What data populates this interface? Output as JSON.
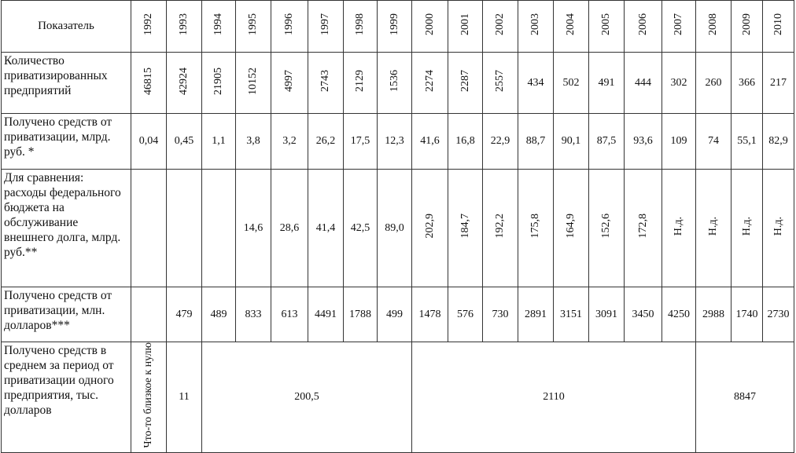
{
  "table": {
    "header": [
      "Показатель",
      "1992",
      "1993",
      "1994",
      "1995",
      "1996",
      "1997",
      "1998",
      "1999",
      "2000",
      "2001",
      "2002",
      "2003",
      "2004",
      "2005",
      "2006",
      "2007",
      "2008",
      "2009",
      "2010"
    ],
    "rows": [
      {
        "label": "Количество приватизированных предприятий",
        "cells": [
          "46815",
          "42924",
          "21905",
          "10152",
          "4997",
          "2743",
          "2129",
          "1536",
          "2274",
          "2287",
          "2557",
          "434",
          "502",
          "491",
          "444",
          "302",
          "260",
          "366",
          "217"
        ]
      },
      {
        "label": "Получено средств от приватизации, млрд. руб. *",
        "cells": [
          "0,04",
          "0,45",
          "1,1",
          "3,8",
          "3,2",
          "26,2",
          "17,5",
          "12,3",
          "41,6",
          "16,8",
          "22,9",
          "88,7",
          "90,1",
          "87,5",
          "93,6",
          "109",
          "74",
          "55,1",
          "82,9"
        ]
      },
      {
        "label": "Для сравнения: расходы федерального бюджета на обслуживание внешнего долга, млрд. руб.**",
        "cells": [
          null,
          null,
          null,
          "14,6",
          "28,6",
          "41,4",
          "42,5",
          "89,0",
          "202,9",
          "184,7",
          "192,2",
          "175,8",
          "164,9",
          "152,6",
          "172,8",
          "Н.д.",
          "Н.д.",
          "Н.д.",
          "Н.д."
        ]
      },
      {
        "label": "Получено средств от приватизации, млн. долларов***",
        "cells": [
          null,
          "479",
          "489",
          "833",
          "613",
          "4491",
          "1788",
          "499",
          "1478",
          "576",
          "730",
          "2891",
          "3151",
          "3091",
          "3450",
          "4250",
          "2988",
          "1740",
          "2730"
        ]
      },
      {
        "label": "Получено средств в среднем за период от приватизации одного предприятия, тыс. долларов",
        "cells": [
          "Что-то близкое к нулю",
          "11",
          "200,5",
          "2110",
          "8847"
        ]
      }
    ]
  }
}
